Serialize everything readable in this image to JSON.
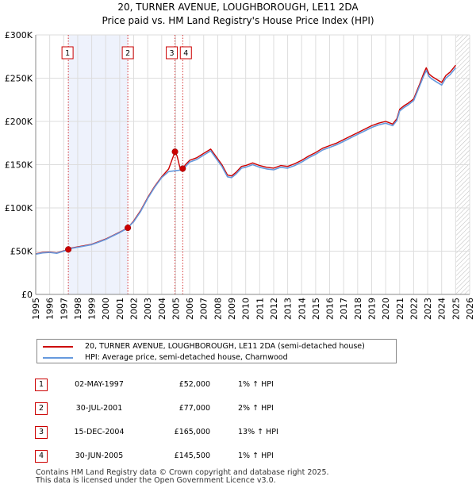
{
  "title_line1": "20, TURNER AVENUE, LOUGHBOROUGH, LE11 2DA",
  "title_line2": "Price paid vs. HM Land Registry's House Price Index (HPI)",
  "colors": {
    "price_line": "#cc0000",
    "hpi_line": "#6699dd",
    "shade": "#eef2fc",
    "hatch": "#bbbbbb",
    "marker_box": "#cc0000"
  },
  "legend": {
    "property_label": "20, TURNER AVENUE, LOUGHBOROUGH, LE11 2DA (semi-detached house)",
    "hpi_label": "HPI: Average price, semi-detached house, Charnwood"
  },
  "transactions": [
    {
      "num": "1",
      "date": "02-MAY-1997",
      "price": "£52,000",
      "hpi": "1% ↑ HPI"
    },
    {
      "num": "2",
      "date": "30-JUL-2001",
      "price": "£77,000",
      "hpi": "2% ↑ HPI"
    },
    {
      "num": "3",
      "date": "15-DEC-2004",
      "price": "£165,000",
      "hpi": "13% ↑ HPI"
    },
    {
      "num": "4",
      "date": "30-JUN-2005",
      "price": "£145,500",
      "hpi": "1% ↑ HPI"
    }
  ],
  "footer": {
    "line1": "Contains HM Land Registry data © Crown copyright and database right 2025.",
    "line2": "This data is licensed under the Open Government Licence v3.0."
  },
  "chart_data": {
    "type": "line",
    "title": "20, TURNER AVENUE, LOUGHBOROUGH, LE11 2DA — Price paid vs. HM Land Registry's House Price Index (HPI)",
    "xlabel": "",
    "ylabel": "",
    "xlim": [
      1995,
      2026
    ],
    "ylim": [
      0,
      300000
    ],
    "x_ticks": [
      1995,
      1996,
      1997,
      1998,
      1999,
      2000,
      2001,
      2002,
      2003,
      2004,
      2005,
      2006,
      2007,
      2008,
      2009,
      2010,
      2011,
      2012,
      2013,
      2014,
      2015,
      2016,
      2017,
      2018,
      2019,
      2020,
      2021,
      2022,
      2023,
      2024,
      2025,
      2026
    ],
    "y_ticks": [
      {
        "value": 0,
        "label": "£0"
      },
      {
        "value": 50000,
        "label": "£50K"
      },
      {
        "value": 100000,
        "label": "£100K"
      },
      {
        "value": 150000,
        "label": "£150K"
      },
      {
        "value": 200000,
        "label": "£200K"
      },
      {
        "value": 250000,
        "label": "£250K"
      },
      {
        "value": 300000,
        "label": "£300K"
      }
    ],
    "grid": true,
    "shaded_ranges": [
      [
        1997.33,
        2001.58
      ]
    ],
    "future_hatch_from": 2025.05,
    "series": [
      {
        "name": "20, TURNER AVENUE, LOUGHBOROUGH, LE11 2DA (semi-detached house)",
        "role": "price",
        "x": [
          1995.0,
          1995.5,
          1996.0,
          1996.5,
          1997.0,
          1997.33,
          1997.5,
          1998.0,
          1998.5,
          1999.0,
          1999.5,
          2000.0,
          2000.5,
          2001.0,
          2001.58,
          2002.0,
          2002.5,
          2003.0,
          2003.5,
          2004.0,
          2004.5,
          2004.95,
          2005.1,
          2005.3,
          2005.5,
          2005.7,
          2006.0,
          2006.5,
          2007.0,
          2007.5,
          2007.9,
          2008.3,
          2008.7,
          2009.0,
          2009.3,
          2009.7,
          2010.0,
          2010.5,
          2011.0,
          2011.5,
          2012.0,
          2012.5,
          2013.0,
          2013.5,
          2014.0,
          2014.5,
          2015.0,
          2015.5,
          2016.0,
          2016.5,
          2017.0,
          2017.5,
          2018.0,
          2018.5,
          2019.0,
          2019.5,
          2020.0,
          2020.5,
          2020.8,
          2021.0,
          2021.3,
          2021.6,
          2022.0,
          2022.4,
          2022.7,
          2022.9,
          2023.1,
          2023.3,
          2023.6,
          2024.0,
          2024.3,
          2024.6,
          2025.0
        ],
        "values": [
          47000,
          48500,
          49000,
          48000,
          50500,
          52000,
          53500,
          55000,
          56500,
          58000,
          61000,
          64000,
          68000,
          72000,
          77000,
          85000,
          97000,
          112000,
          125000,
          136000,
          145000,
          165000,
          160000,
          147000,
          145500,
          150000,
          155000,
          158000,
          163000,
          168000,
          159000,
          150000,
          138000,
          137000,
          141000,
          148000,
          149000,
          152000,
          149000,
          147000,
          146000,
          149000,
          148000,
          151000,
          155000,
          160000,
          164000,
          169000,
          172000,
          175000,
          179000,
          183000,
          187000,
          191000,
          195000,
          198000,
          200000,
          197000,
          203000,
          214000,
          218000,
          221000,
          226000,
          242000,
          255000,
          262000,
          255000,
          252000,
          249000,
          245000,
          253000,
          257000,
          265000
        ]
      },
      {
        "name": "HPI: Average price, semi-detached house, Charnwood",
        "role": "hpi",
        "x": [
          1995.0,
          1995.5,
          1996.0,
          1996.5,
          1997.0,
          1997.5,
          1998.0,
          1998.5,
          1999.0,
          1999.5,
          2000.0,
          2000.5,
          2001.0,
          2001.5,
          2002.0,
          2002.5,
          2003.0,
          2003.5,
          2004.0,
          2004.5,
          2005.0,
          2005.5,
          2006.0,
          2006.5,
          2007.0,
          2007.5,
          2007.9,
          2008.3,
          2008.7,
          2009.0,
          2009.3,
          2009.7,
          2010.0,
          2010.5,
          2011.0,
          2011.5,
          2012.0,
          2012.5,
          2013.0,
          2013.5,
          2014.0,
          2014.5,
          2015.0,
          2015.5,
          2016.0,
          2016.5,
          2017.0,
          2017.5,
          2018.0,
          2018.5,
          2019.0,
          2019.5,
          2020.0,
          2020.5,
          2020.8,
          2021.0,
          2021.3,
          2021.6,
          2022.0,
          2022.4,
          2022.7,
          2022.9,
          2023.1,
          2023.3,
          2023.6,
          2024.0,
          2024.3,
          2024.6,
          2025.0
        ],
        "values": [
          46500,
          48000,
          48500,
          47500,
          50000,
          53000,
          54500,
          56000,
          57500,
          60500,
          63500,
          67500,
          71500,
          76000,
          84000,
          96000,
          111000,
          124000,
          135000,
          142000,
          143000,
          144000,
          153000,
          156000,
          161000,
          166000,
          157000,
          148000,
          136000,
          135000,
          139000,
          146000,
          147000,
          150000,
          147000,
          145000,
          144000,
          147000,
          146000,
          149000,
          153000,
          158000,
          162000,
          167000,
          170000,
          173000,
          177000,
          181000,
          185000,
          189000,
          193000,
          196000,
          198000,
          195000,
          201000,
          212000,
          216000,
          219000,
          224000,
          240000,
          252000,
          259000,
          252000,
          249000,
          246000,
          242000,
          250000,
          254000,
          262000
        ]
      }
    ],
    "sales": [
      {
        "label": "1",
        "x": 1997.33,
        "value": 52000
      },
      {
        "label": "2",
        "x": 2001.58,
        "value": 77000
      },
      {
        "label": "3",
        "x": 2004.95,
        "value": 165000
      },
      {
        "label": "4",
        "x": 2005.5,
        "value": 145500
      }
    ]
  }
}
